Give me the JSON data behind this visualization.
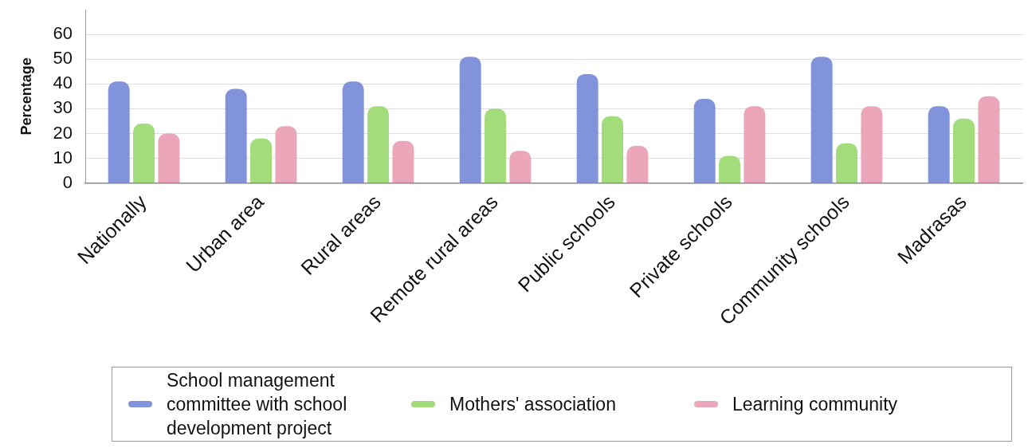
{
  "chart_data": {
    "type": "bar",
    "ylabel": "Percentage",
    "categories": [
      "Nationally",
      "Urban area",
      "Rural areas",
      "Remote rural areas",
      "Public schools",
      "Private schools",
      "Community schools",
      "Madrasas"
    ],
    "series": [
      {
        "name": "School management committee with school development project",
        "color": "#8193da",
        "values": [
          41,
          38,
          41,
          51,
          44,
          34,
          51,
          31
        ]
      },
      {
        "name": "Mothers' association",
        "color": "#a3dc7a",
        "values": [
          24,
          18,
          31,
          30,
          27,
          11,
          16,
          26
        ]
      },
      {
        "name": "Learning community",
        "color": "#eba6ba",
        "values": [
          20,
          23,
          17,
          13,
          15,
          31,
          31,
          35
        ]
      }
    ],
    "ylim": [
      0,
      70
    ],
    "yticks": [
      0,
      10,
      20,
      30,
      40,
      50,
      60
    ],
    "grid": "y",
    "legend": "bottom"
  }
}
